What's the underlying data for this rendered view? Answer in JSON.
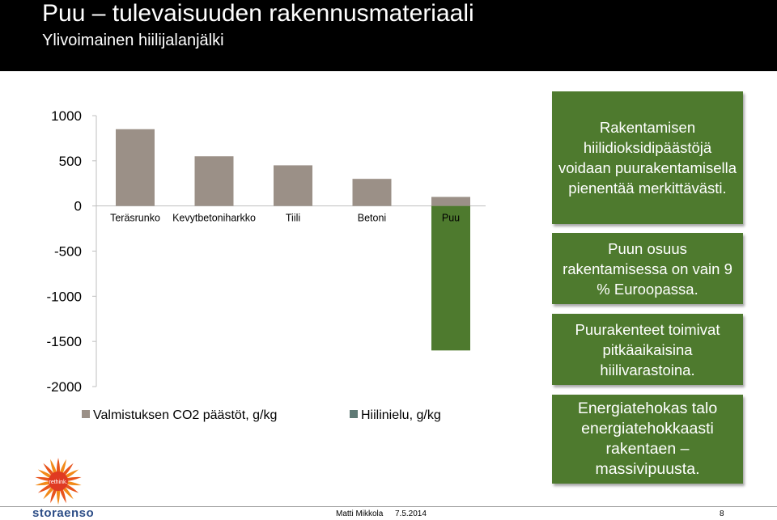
{
  "header": {
    "title": "Puu – tulevaisuuden rakennusmateriaali",
    "subtitle": "Ylivoimainen hiilijalanjälki"
  },
  "chart_data": {
    "type": "bar",
    "categories": [
      "Teräsrunko",
      "Kevytbetoniharkko",
      "Tiili",
      "Betoni",
      "Puu"
    ],
    "series": [
      {
        "name": "Valmistuksen CO2 päästöt, g/kg",
        "values": [
          850,
          550,
          450,
          300,
          100
        ],
        "color": "#9b9087"
      },
      {
        "name": "Hiilinielu, g/kg",
        "values": [
          0,
          0,
          0,
          0,
          -1600
        ],
        "color": "#4e7a2e"
      }
    ],
    "yticks": [
      1000,
      500,
      0,
      -500,
      -1000,
      -1500,
      -2000
    ],
    "ylim": [
      -2000,
      1000
    ],
    "legend_position": "bottom",
    "legend_marker_colors": [
      "#9b9087",
      "#5f7a75"
    ],
    "grid": false
  },
  "callouts": [
    "Rakentamisen hiilidioksidipäästöjä voidaan puurakentamisella pienentää merkittävästi.",
    "Puun osuus rakentamisessa on vain 9 % Euroopassa.",
    "Puurakenteet toimivat pitkäaikaisina hiilivarastoina.",
    "Energiatehokas talo energiatehokkaasti rakentaen – massivipuusta."
  ],
  "logo": {
    "badge_text": "rethink.",
    "brand": "storaenso"
  },
  "footer": {
    "author": "Matti Mikkola",
    "date": "7.5.2014",
    "page": "8"
  }
}
